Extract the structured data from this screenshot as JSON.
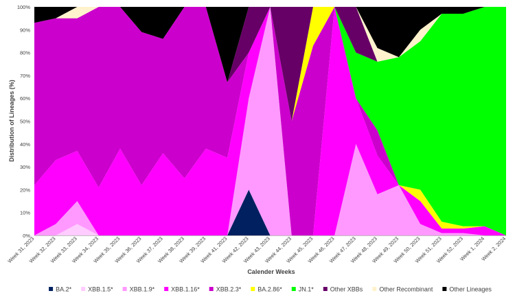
{
  "chart_data": {
    "type": "area",
    "stacked": true,
    "percent": true,
    "xlabel": "Calender Weeks",
    "ylabel": "Distribution of Lineages (%)",
    "ylim": [
      0,
      100
    ],
    "yticks": [
      "0%",
      "10%",
      "20%",
      "30%",
      "40%",
      "50%",
      "60%",
      "70%",
      "80%",
      "90%",
      "100%"
    ],
    "grid": false,
    "legend": "bottom",
    "categories": [
      "Week 31, 2023",
      "Week 32, 2023",
      "Week 33, 2023",
      "Week 34, 2023",
      "Week 35, 2023",
      "Week 36, 2023",
      "Week 37, 2023",
      "Week 38, 2023",
      "Week 39, 2023",
      "Week 41, 2023",
      "Week 42, 2023",
      "Week 43, 2023",
      "Week 44, 2023",
      "Week 45, 2023",
      "Week 46, 2023",
      "Week 47, 2023",
      "Week 48, 2023",
      "Week 49, 2023",
      "Week 50, 2023",
      "Week 51, 2023",
      "Week 52, 2023",
      "Week 1, 2024",
      "Week 2, 2024"
    ],
    "series": [
      {
        "name": "BA.2*",
        "color": "#002060",
        "values": [
          0,
          0,
          0,
          0,
          0,
          0,
          0,
          0,
          0,
          0,
          20,
          0,
          0,
          0,
          0,
          0,
          0,
          0,
          0,
          0,
          0,
          0,
          0
        ]
      },
      {
        "name": "XBB.1.5*",
        "color": "#FFCCFF",
        "values": [
          0,
          0,
          5,
          0,
          0,
          0,
          0,
          0,
          0,
          0,
          0,
          0,
          0,
          0,
          0,
          0,
          0,
          0,
          0,
          0,
          0,
          0,
          0
        ]
      },
      {
        "name": "XBB.1.9*",
        "color": "#FF99FF",
        "values": [
          0,
          5,
          10,
          0,
          0,
          0,
          0,
          0,
          0,
          0,
          40,
          100,
          0,
          0,
          0,
          40,
          18,
          22,
          5,
          1,
          1,
          0,
          0
        ]
      },
      {
        "name": "XBB.1.16*",
        "color": "#FF00FF",
        "values": [
          22,
          28,
          22,
          21,
          38,
          22,
          36,
          25,
          38,
          34,
          20,
          0,
          0,
          0,
          100,
          20,
          17,
          0,
          10,
          2,
          2,
          4,
          0
        ]
      },
      {
        "name": "XBB.2.3*",
        "color": "#CC00CC",
        "values": [
          71,
          62,
          58,
          79,
          62,
          67,
          50,
          75,
          62,
          33,
          0,
          0,
          50,
          83,
          0,
          0,
          11,
          0,
          0,
          0,
          0,
          0,
          0
        ]
      },
      {
        "name": "BA.2.86*",
        "color": "#FFFF00",
        "values": [
          0,
          0,
          0,
          0,
          0,
          0,
          0,
          0,
          0,
          0,
          0,
          0,
          0,
          17,
          0,
          0,
          0,
          0,
          5,
          3,
          1,
          0,
          0
        ]
      },
      {
        "name": "JN.1*",
        "color": "#00FF00",
        "values": [
          0,
          0,
          0,
          0,
          0,
          0,
          0,
          0,
          0,
          0,
          0,
          0,
          0,
          0,
          0,
          20,
          30,
          56,
          65,
          91,
          93,
          96,
          100
        ]
      },
      {
        "name": "Other XBBs",
        "color": "#660066",
        "values": [
          0,
          0,
          0,
          0,
          0,
          0,
          0,
          0,
          0,
          0,
          20,
          0,
          50,
          0,
          0,
          20,
          0,
          0,
          0,
          0,
          0,
          0,
          0
        ]
      },
      {
        "name": "Other Recombinant",
        "color": "#FFF2CC",
        "values": [
          0,
          0,
          5,
          0,
          0,
          0,
          0,
          0,
          0,
          0,
          0,
          0,
          0,
          0,
          0,
          0,
          6,
          0,
          5,
          0,
          0,
          0,
          0
        ]
      },
      {
        "name": "Other Lineages",
        "color": "#000000",
        "values": [
          7,
          5,
          0,
          0,
          0,
          11,
          14,
          0,
          0,
          33,
          0,
          0,
          0,
          0,
          0,
          0,
          18,
          22,
          10,
          3,
          3,
          0,
          0
        ]
      }
    ]
  }
}
